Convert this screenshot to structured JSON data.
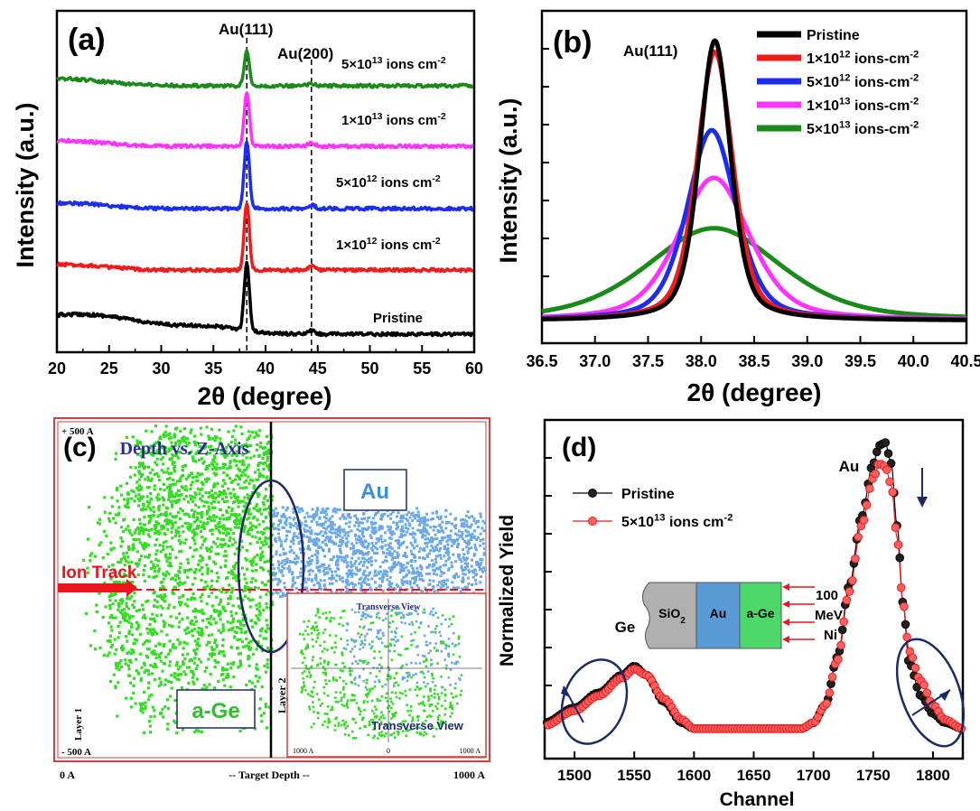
{
  "colors": {
    "pristine": "#000000",
    "d1e12": "#ee1c1c",
    "d5e12": "#1c2cf0",
    "d1e13": "#ff33ff",
    "d5e13": "#1a8a1a",
    "au_atoms": "#6aa8e8",
    "ge_atoms": "#33dd22",
    "ion_track": "#e8151b",
    "frame": "#d04040",
    "ellipse": "#1c2a66",
    "navy": "#1c2a66"
  },
  "panel_a": {
    "tag": "(a)",
    "ylabel": "Intensity (a.u.)",
    "xlabel": "2θ (degree)",
    "peak1": "Au(111)",
    "peak2": "Au(200)",
    "labels": [
      {
        "pre": "Pristine",
        "num": "",
        "exp": "",
        "post": ""
      },
      {
        "pre": "1×10",
        "num": "",
        "exp": "12",
        "post": " ions cm",
        "exp2": "-2"
      },
      {
        "pre": "5×10",
        "num": "",
        "exp": "12",
        "post": " ions cm",
        "exp2": "-2"
      },
      {
        "pre": "1×10",
        "num": "",
        "exp": "13",
        "post": " ions cm",
        "exp2": "-2"
      },
      {
        "pre": "5×10",
        "num": "",
        "exp": "13",
        "post": " ions cm",
        "exp2": "-2"
      }
    ]
  },
  "panel_b": {
    "tag": "(b)",
    "peak": "Au(111)",
    "ylabel": "Intensity (a.u.)",
    "xlabel": "2θ (degree)",
    "legend": [
      {
        "pre": "Pristine",
        "exp": "",
        "post": "",
        "exp2": ""
      },
      {
        "pre": "1×10",
        "exp": "12",
        "post": " ions-cm",
        "exp2": "-2"
      },
      {
        "pre": "5×10",
        "exp": "12",
        "post": " ions-cm",
        "exp2": "-2"
      },
      {
        "pre": "1×10",
        "exp": "13",
        "post": " ions-cm",
        "exp2": "-2"
      },
      {
        "pre": "5×10",
        "exp": "13",
        "post": " ions-cm",
        "exp2": "-2"
      }
    ]
  },
  "panel_c": {
    "tag": "(c)",
    "title": "Depth vs. Z-Axis",
    "top_left": "+ 500 A",
    "bottom_left": "- 500 A",
    "axis_left": "0 A",
    "axis_mid": "-- Target Depth --",
    "axis_right": "1000 A",
    "au": "Au",
    "age": "a-Ge",
    "ion_track": "Ion Track",
    "layer1": "Layer 1",
    "inset_title": "Transverse View",
    "inset_caption": "Transverse View",
    "inset_layer": "Layer 2",
    "inset_t1": "1000 A",
    "inset_t2": "0",
    "inset_t3": "1000 A"
  },
  "panel_d": {
    "tag": "(d)",
    "ylabel": "Normalized Yield",
    "xlabel": "Channel",
    "au": "Au",
    "ge": "Ge",
    "legend": [
      {
        "pre": "Pristine",
        "exp": "",
        "post": "",
        "exp2": ""
      },
      {
        "pre": "5×10",
        "exp": "13",
        "post": " ions cm",
        "exp2": "-2"
      }
    ],
    "layers": [
      "SiO2",
      "Au",
      "a-Ge"
    ],
    "beam": [
      "100",
      "MeV",
      "Ni"
    ]
  },
  "chart_data": [
    {
      "type": "line",
      "panel": "a",
      "xlabel": "2θ (degree)",
      "ylabel": "Intensity (a.u.)",
      "xlim": [
        20,
        60
      ],
      "xticks": [
        20,
        25,
        30,
        35,
        40,
        45,
        50,
        55,
        60
      ],
      "reference_lines": [
        38.2,
        44.4
      ],
      "series": [
        {
          "name": "Pristine",
          "baseline_offset": 0,
          "peak_111_height": 1.0,
          "peak_200_height": 0.05
        },
        {
          "name": "1×10^12 ions cm^-2",
          "baseline_offset": 1,
          "peak_111_height": 1.0,
          "peak_200_height": 0.06
        },
        {
          "name": "5×10^12 ions cm^-2",
          "baseline_offset": 2,
          "peak_111_height": 1.0,
          "peak_200_height": 0.06
        },
        {
          "name": "1×10^13 ions cm^-2",
          "baseline_offset": 3,
          "peak_111_height": 0.8,
          "peak_200_height": 0.05
        },
        {
          "name": "5×10^13 ions cm^-2",
          "baseline_offset": 4,
          "peak_111_height": 0.5,
          "peak_200_height": 0.03
        }
      ]
    },
    {
      "type": "line",
      "panel": "b",
      "xlabel": "2θ (degree)",
      "ylabel": "Intensity (a.u.)",
      "xlim": [
        36.5,
        40.5
      ],
      "xticks": [
        36.5,
        37.0,
        37.5,
        38.0,
        38.5,
        39.0,
        39.5,
        40.0,
        40.5
      ],
      "ylim": [
        0,
        1.05
      ],
      "series": [
        {
          "name": "Pristine",
          "center": 38.13,
          "peak": 1.0,
          "fwhm": 0.35
        },
        {
          "name": "1×10^12 ions-cm^-2",
          "center": 38.13,
          "peak": 0.96,
          "fwhm": 0.4
        },
        {
          "name": "5×10^12 ions-cm^-2",
          "center": 38.1,
          "peak": 0.68,
          "fwhm": 0.55
        },
        {
          "name": "1×10^13 ions-cm^-2",
          "center": 38.12,
          "peak": 0.51,
          "fwhm": 0.8
        },
        {
          "name": "5×10^13 ions-cm^-2",
          "center": 38.12,
          "peak": 0.33,
          "fwhm": 1.5
        }
      ]
    },
    {
      "type": "line",
      "panel": "d",
      "xlabel": "Channel",
      "ylabel": "Normalized Yield",
      "xlim": [
        1475,
        1825
      ],
      "xticks": [
        1500,
        1550,
        1600,
        1650,
        1700,
        1750,
        1800
      ],
      "ylim": [
        0,
        1.0
      ],
      "series": [
        {
          "name": "Pristine",
          "x": [
            1475,
            1500,
            1520,
            1540,
            1550,
            1560,
            1575,
            1590,
            1600,
            1650,
            1690,
            1700,
            1710,
            1720,
            1730,
            1740,
            1750,
            1755,
            1760,
            1765,
            1770,
            1775,
            1780,
            1790,
            1800,
            1810,
            1825
          ],
          "y": [
            0.06,
            0.11,
            0.16,
            0.22,
            0.25,
            0.22,
            0.13,
            0.06,
            0.04,
            0.04,
            0.04,
            0.06,
            0.12,
            0.28,
            0.52,
            0.75,
            0.93,
            0.99,
            1.0,
            0.93,
            0.72,
            0.46,
            0.26,
            0.15,
            0.09,
            0.06,
            0.04
          ]
        },
        {
          "name": "5×10^13 ions cm^-2",
          "x": [
            1475,
            1500,
            1520,
            1540,
            1550,
            1560,
            1575,
            1590,
            1600,
            1650,
            1690,
            1700,
            1710,
            1720,
            1730,
            1740,
            1750,
            1755,
            1760,
            1765,
            1770,
            1775,
            1780,
            1790,
            1800,
            1810,
            1825
          ],
          "y": [
            0.05,
            0.1,
            0.15,
            0.21,
            0.24,
            0.22,
            0.14,
            0.07,
            0.04,
            0.04,
            0.04,
            0.06,
            0.12,
            0.27,
            0.5,
            0.72,
            0.88,
            0.93,
            0.92,
            0.86,
            0.68,
            0.46,
            0.3,
            0.2,
            0.12,
            0.07,
            0.04
          ]
        }
      ]
    }
  ]
}
